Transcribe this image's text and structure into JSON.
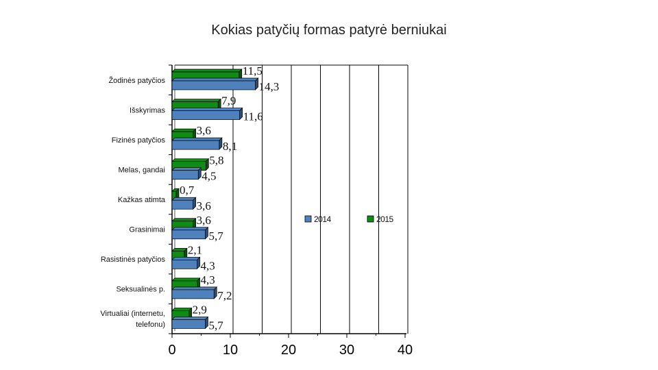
{
  "slide": {
    "title": "Kokias patyčių formas patyrė berniukai"
  },
  "chart_data": {
    "type": "bar",
    "orientation": "horizontal",
    "title": "",
    "xlabel": "",
    "ylabel": "",
    "xlim": [
      0,
      40
    ],
    "x_ticks": [
      "0",
      "10",
      "20",
      "30",
      "40"
    ],
    "grid": "vertical",
    "legend_position": "right-middle",
    "categories": [
      "Žodinės patyčios",
      "Išskyrimas",
      "Fizinės patyčios",
      "Melas, gandai",
      "Kažkas atimta",
      "Grasinimai",
      "Rasistinės patyčios",
      "Seksualinės p.",
      "Virtualiai (internetu, telefonu)"
    ],
    "category_lines": [
      [
        "Žodinės patyčios"
      ],
      [
        "Išskyrimas"
      ],
      [
        "Fizinės patyčios"
      ],
      [
        "Melas, gandai"
      ],
      [
        "Kažkas atimta"
      ],
      [
        "Grasinimai"
      ],
      [
        "Rasistinės patyčios"
      ],
      [
        "Seksualinės p."
      ],
      [
        "Virtualiai (internetu,",
        "telefonu)"
      ]
    ],
    "series": [
      {
        "name": "2014",
        "color": "#4f81bd",
        "values": [
          14.3,
          11.6,
          8.1,
          4.5,
          3.6,
          5.7,
          4.3,
          7.2,
          5.7
        ],
        "labels": [
          "14,3",
          "11,6",
          "8,1",
          "4,5",
          "3,6",
          "5,7",
          "4,3",
          "7,2",
          "5,7"
        ]
      },
      {
        "name": "2015",
        "color": "#0e8c14",
        "values": [
          11.5,
          7.9,
          3.6,
          5.8,
          0.7,
          3.6,
          2.1,
          4.3,
          2.9
        ],
        "labels": [
          "11,5",
          "7,9",
          "3,6",
          "5,8",
          "0,7",
          "3,6",
          "2,1",
          "4,3",
          "2,9"
        ]
      }
    ]
  }
}
